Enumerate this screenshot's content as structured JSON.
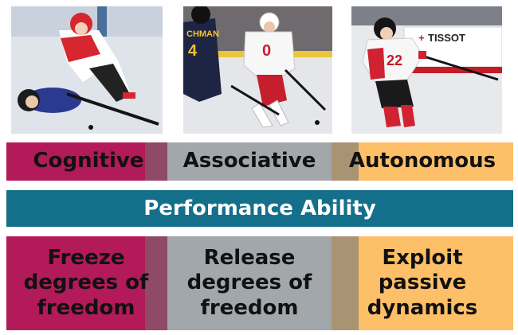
{
  "stages": [
    {
      "label": "Cognitive",
      "color": "#b21a5a"
    },
    {
      "label": "Associative",
      "color": "#a2a7ab"
    },
    {
      "label": "Autonomous",
      "color": "#fdbf68"
    }
  ],
  "center_bar": {
    "label": "Performance Ability",
    "color": "#146f8a"
  },
  "descriptions": [
    {
      "lines": [
        "Freeze",
        "degrees of",
        "freedom"
      ]
    },
    {
      "lines": [
        "Release",
        "degrees of",
        "freedom"
      ]
    },
    {
      "lines": [
        "Exploit",
        "passive",
        "dynamics"
      ]
    }
  ],
  "photo_texts": {
    "jersey_1": "0",
    "jersey_2": "CHMAN",
    "sponsor": "TISSOT",
    "jersey_3": "22"
  }
}
